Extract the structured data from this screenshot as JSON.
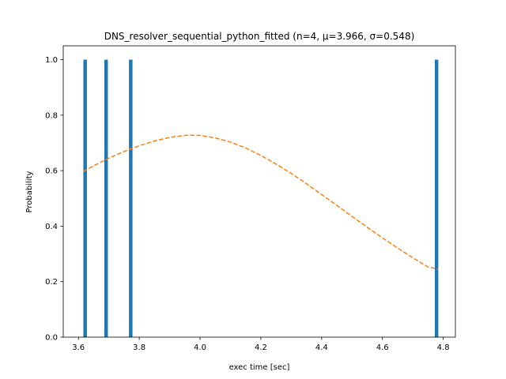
{
  "chart_data": {
    "type": "bar",
    "title": "DNS_resolver_sequential_python_fitted (n=4, μ=3.966, σ=0.548)",
    "xlabel": "exec time [sec]",
    "ylabel": "Probability",
    "xlim": [
      3.55,
      4.84
    ],
    "ylim": [
      0.0,
      1.05
    ],
    "xticks": [
      3.6,
      3.8,
      4.0,
      4.2,
      4.4,
      4.6,
      4.8
    ],
    "yticks": [
      0.0,
      0.2,
      0.4,
      0.6,
      0.8,
      1.0
    ],
    "grid": false,
    "series": [
      {
        "kind": "bar",
        "color": "#1f77b4",
        "bar_width": 0.0116,
        "x": [
          3.622,
          3.691,
          3.772,
          4.778
        ],
        "values": [
          1.0,
          1.0,
          1.0,
          1.0
        ]
      },
      {
        "kind": "line",
        "style": "dashed",
        "color": "#ff7f0e",
        "x": [
          3.616,
          3.66,
          3.7,
          3.75,
          3.8,
          3.85,
          3.9,
          3.95,
          3.966,
          4.0,
          4.05,
          4.1,
          4.15,
          4.2,
          4.25,
          4.3,
          4.35,
          4.4,
          4.45,
          4.5,
          4.55,
          4.6,
          4.65,
          4.7,
          4.75,
          4.784
        ],
        "values": [
          0.597,
          0.623,
          0.645,
          0.669,
          0.69,
          0.707,
          0.72,
          0.727,
          0.728,
          0.727,
          0.718,
          0.703,
          0.682,
          0.655,
          0.624,
          0.59,
          0.553,
          0.514,
          0.475,
          0.435,
          0.396,
          0.358,
          0.321,
          0.286,
          0.253,
          0.245
        ]
      }
    ]
  }
}
